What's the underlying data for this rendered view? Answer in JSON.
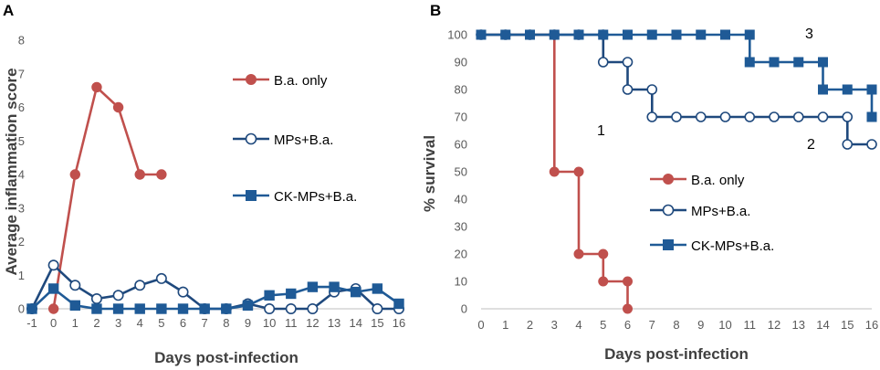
{
  "chart_data": [
    {
      "panel": "A",
      "type": "line",
      "xlabel": "Days post-infection",
      "ylabel": "Average inflammation score",
      "xlim": [
        -1,
        16
      ],
      "ylim": [
        0,
        8
      ],
      "xticks": [
        -1,
        0,
        1,
        2,
        3,
        4,
        5,
        6,
        7,
        8,
        9,
        10,
        11,
        12,
        13,
        14,
        15,
        16
      ],
      "yticks": [
        0,
        1,
        2,
        3,
        4,
        5,
        6,
        7,
        8
      ],
      "legend": [
        "B.a. only",
        "MPs+B.a.",
        "CK-MPs+B.a."
      ],
      "series": [
        {
          "name": "B.a. only",
          "color": "#c0504d",
          "marker": "circle-filled",
          "x": [
            0,
            1,
            2,
            3,
            4,
            5
          ],
          "y": [
            0,
            4,
            6.6,
            6,
            4,
            4
          ]
        },
        {
          "name": "MPs+B.a.",
          "color": "#1f497d",
          "marker": "circle-open",
          "x": [
            -1,
            0,
            1,
            2,
            3,
            4,
            5,
            6,
            7,
            8,
            9,
            10,
            11,
            12,
            13,
            14,
            15,
            16
          ],
          "y": [
            0,
            1.3,
            0.7,
            0.3,
            0.4,
            0.7,
            0.9,
            0.5,
            0,
            0,
            0.15,
            0,
            0,
            0,
            0.5,
            0.6,
            0,
            0
          ]
        },
        {
          "name": "CK-MPs+B.a.",
          "color": "#1f5a96",
          "marker": "square",
          "x": [
            -1,
            0,
            1,
            2,
            3,
            4,
            5,
            6,
            7,
            8,
            9,
            10,
            11,
            12,
            13,
            14,
            15,
            16
          ],
          "y": [
            0,
            0.6,
            0.1,
            0,
            0,
            0,
            0,
            0,
            0,
            0,
            0.1,
            0.4,
            0.45,
            0.65,
            0.65,
            0.5,
            0.6,
            0.15
          ]
        }
      ]
    },
    {
      "panel": "B",
      "type": "line",
      "step": true,
      "xlabel": "Days post-infection",
      "ylabel": "% survival",
      "xlim": [
        0,
        16
      ],
      "ylim": [
        0,
        100
      ],
      "xticks": [
        0,
        1,
        2,
        3,
        4,
        5,
        6,
        7,
        8,
        9,
        10,
        11,
        12,
        13,
        14,
        15,
        16
      ],
      "yticks": [
        0,
        10,
        20,
        30,
        40,
        50,
        60,
        70,
        80,
        90,
        100
      ],
      "legend": [
        "B.a. only",
        "MPs+B.a.",
        "CK-MPs+B.a."
      ],
      "annotations": [
        "1",
        "2",
        "3"
      ],
      "series": [
        {
          "name": "B.a. only",
          "color": "#c0504d",
          "marker": "circle-filled",
          "x": [
            0,
            1,
            2,
            3,
            3,
            4,
            4,
            5,
            5,
            6,
            6
          ],
          "y": [
            100,
            100,
            100,
            100,
            50,
            50,
            20,
            20,
            10,
            10,
            0
          ]
        },
        {
          "name": "MPs+B.a.",
          "color": "#1f497d",
          "marker": "circle-open",
          "x": [
            0,
            1,
            2,
            3,
            4,
            5,
            5,
            6,
            6,
            7,
            7,
            8,
            9,
            10,
            11,
            12,
            13,
            14,
            15,
            15,
            16
          ],
          "y": [
            100,
            100,
            100,
            100,
            100,
            100,
            90,
            90,
            80,
            80,
            70,
            70,
            70,
            70,
            70,
            70,
            70,
            70,
            70,
            60,
            60
          ]
        },
        {
          "name": "CK-MPs+B.a.",
          "color": "#1f5a96",
          "marker": "square",
          "x": [
            0,
            1,
            2,
            3,
            4,
            5,
            6,
            7,
            8,
            9,
            10,
            11,
            11,
            12,
            13,
            14,
            14,
            15,
            16,
            16
          ],
          "y": [
            100,
            100,
            100,
            100,
            100,
            100,
            100,
            100,
            100,
            100,
            100,
            100,
            90,
            90,
            90,
            90,
            80,
            80,
            80,
            70
          ]
        }
      ]
    }
  ]
}
